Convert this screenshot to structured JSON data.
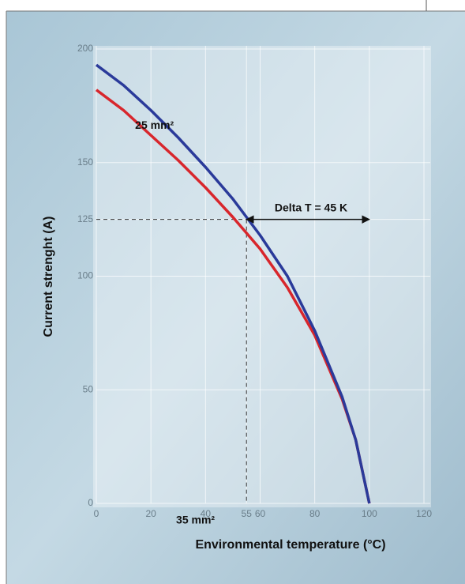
{
  "chart_data": {
    "type": "line",
    "xlabel": "Environmental temperature (°C)",
    "ylabel": "Current strenght (A)",
    "xlim": [
      0,
      120
    ],
    "ylim": [
      0,
      200
    ],
    "xticks": [
      0,
      20,
      40,
      55,
      60,
      80,
      100,
      120
    ],
    "yticks": [
      0,
      50,
      100,
      125,
      150,
      200
    ],
    "grid": true,
    "x": [
      0,
      10,
      20,
      30,
      40,
      50,
      55,
      60,
      70,
      80,
      90,
      95,
      100
    ],
    "series": [
      {
        "name": "35 mm²",
        "color": "#2a3a9a",
        "values": [
          193,
          184,
          173,
          161,
          148,
          134,
          126,
          118,
          100,
          76,
          47,
          28,
          0
        ]
      },
      {
        "name": "25 mm²",
        "color": "#d8262c",
        "values": [
          182,
          173,
          162,
          151,
          139,
          126,
          119,
          112,
          95,
          74,
          46,
          28,
          0
        ]
      }
    ],
    "reference": {
      "x": 55,
      "y": 125
    },
    "annotation": {
      "text": "Delta T = 45 K",
      "x": [
        55,
        100
      ],
      "y": 125
    }
  }
}
